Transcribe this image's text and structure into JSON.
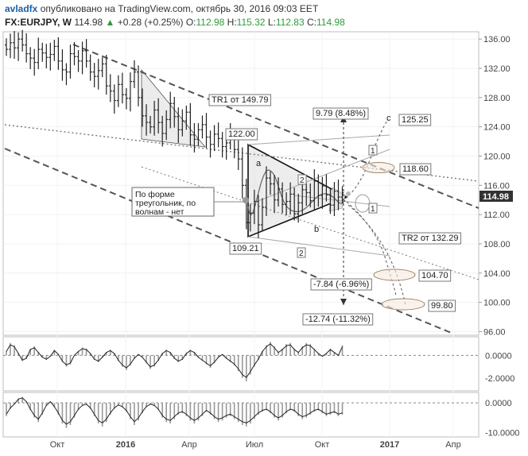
{
  "header": {
    "author": "avladfx",
    "published": "опубликовано на TradingView.com, октябрь 30, 2016 09:03 EET",
    "symbol": "FX:EURJPY, W",
    "last": "114.98",
    "change_arrow": "▲",
    "change": "+0.28 (+0.25%)",
    "open_label": "O:",
    "open": "112.98",
    "high_label": "H:",
    "high": "115.32",
    "low_label": "L:",
    "low": "112.83",
    "close_label": "C:",
    "close": "114.98"
  },
  "colors": {
    "price_tag_bg": "#333333",
    "candles": "#222222",
    "trend_dashed": "#555555",
    "channel_dotted": "#777777"
  },
  "chart_data": [
    {
      "type": "candlestick",
      "panel": "price",
      "y_axis_ticks": [
        136.0,
        132.0,
        128.0,
        124.0,
        120.0,
        116.0,
        112.0,
        108.0,
        104.0,
        100.0,
        96.0
      ],
      "ylim": [
        95.5,
        137.0
      ],
      "last_price_tag": "114.98",
      "x_axis_labels": [
        "Окт",
        "2016",
        "Апр",
        "Июл",
        "Окт",
        "2017",
        "Апр"
      ],
      "series_approx_close": [
        134.6,
        135.5,
        134.8,
        136.0,
        135.2,
        134.0,
        133.4,
        132.8,
        134.6,
        134.1,
        133.5,
        133.9,
        135.0,
        133.0,
        131.8,
        131.5,
        134.0,
        133.6,
        133.0,
        134.4,
        133.0,
        131.5,
        130.9,
        131.7,
        132.6,
        129.6,
        128.9,
        127.6,
        129.8,
        128.4,
        127.9,
        130.2,
        131.5,
        128.0,
        125.5,
        124.6,
        124.0,
        126.3,
        124.6,
        123.1,
        125.0,
        127.2,
        125.4,
        123.6,
        124.8,
        126.0,
        122.9,
        122.3,
        123.6,
        124.3,
        122.6,
        121.6,
        123.0,
        122.4,
        121.3,
        121.8,
        122.9,
        120.9,
        119.6,
        116.0,
        110.9,
        112.2,
        113.8,
        110.6,
        113.0,
        117.0,
        116.2,
        114.0,
        115.5,
        113.4,
        113.8,
        114.8,
        112.1,
        113.6,
        115.4,
        115.0,
        113.9,
        116.6,
        114.6,
        115.9,
        114.7,
        113.3,
        115.2,
        114.4,
        114.98
      ],
      "annotations": [
        {
          "kind": "label",
          "text": "TR1 от 149.79"
        },
        {
          "kind": "label",
          "text": "TR2 от 132.29"
        },
        {
          "kind": "label",
          "text": "122.00"
        },
        {
          "kind": "label",
          "text": "109.21"
        },
        {
          "kind": "label",
          "text": "9.79 (8.48%)"
        },
        {
          "kind": "label",
          "text": "-7.84 (-6.96%)"
        },
        {
          "kind": "label",
          "text": "-12.74 (-11.32%)"
        },
        {
          "kind": "label",
          "text": "125.25"
        },
        {
          "kind": "label",
          "text": "118.60"
        },
        {
          "kind": "label",
          "text": "104.70"
        },
        {
          "kind": "label",
          "text": "99.80"
        },
        {
          "kind": "note",
          "text": "По форме треугольник, по волнам - нет"
        },
        {
          "kind": "wave",
          "text": "a"
        },
        {
          "kind": "wave",
          "text": "b"
        },
        {
          "kind": "wave",
          "text": "c"
        },
        {
          "kind": "marker",
          "text": "1"
        },
        {
          "kind": "marker",
          "text": "2"
        }
      ]
    },
    {
      "type": "histogram+line",
      "panel": "oscillator-1",
      "y_axis_ticks": [
        "0.0000",
        "-2.0000"
      ],
      "ylim": [
        -3.0,
        1.5
      ],
      "values_approx": [
        0.4,
        1.1,
        0.9,
        0.2,
        -0.5,
        -0.3,
        0.6,
        0.8,
        0.3,
        -0.2,
        -0.4,
        -0.1,
        0.5,
        0.1,
        -0.6,
        -1.0,
        -0.8,
        0.0,
        0.4,
        0.7,
        0.6,
        0.2,
        -0.4,
        -0.6,
        -0.2,
        0.3,
        0.5,
        0.2,
        -0.5,
        -1.0,
        -1.3,
        -0.9,
        -0.3,
        0.1,
        -0.2,
        -0.7,
        -1.2,
        -1.0,
        -0.5,
        0.2,
        0.5,
        0.3,
        -0.3,
        -0.6,
        -0.4,
        0.2,
        0.5,
        0.3,
        -0.2,
        -0.5,
        -0.8,
        -1.1,
        -0.7,
        -0.2,
        0.1,
        -0.3,
        -0.6,
        -0.9,
        -1.4,
        -2.0,
        -2.3,
        -1.7,
        -1.0,
        -0.4,
        0.4,
        0.9,
        1.2,
        0.8,
        0.3,
        0.6,
        1.0,
        1.1,
        0.6,
        0.3,
        0.8,
        1.1,
        1.0,
        0.6,
        0.2,
        -0.1,
        0.2,
        0.6,
        0.3,
        0.0,
        0.9
      ]
    },
    {
      "type": "histogram+line",
      "panel": "oscillator-2",
      "y_axis_ticks": [
        "0.0000",
        "-10.0000"
      ],
      "ylim": [
        -11.0,
        3.0
      ],
      "values_approx": [
        -4.5,
        -2.0,
        -0.5,
        1.5,
        2.0,
        0.5,
        -2.5,
        -5.0,
        -6.5,
        -4.0,
        -1.0,
        0.5,
        -1.5,
        -4.0,
        -7.0,
        -8.5,
        -7.5,
        -5.0,
        -2.5,
        -1.0,
        -0.5,
        -2.0,
        -4.5,
        -7.0,
        -8.0,
        -6.5,
        -4.0,
        -2.0,
        -0.8,
        -1.5,
        -3.0,
        -5.5,
        -7.5,
        -6.0,
        -3.5,
        -1.5,
        -0.5,
        -1.0,
        -2.5,
        -5.0,
        -6.5,
        -7.0,
        -5.5,
        -4.0,
        -3.5,
        -4.5,
        -6.0,
        -7.0,
        -6.0,
        -4.5,
        -3.0,
        -4.0,
        -5.5,
        -6.5,
        -6.0,
        -5.0,
        -4.5,
        -5.5,
        -6.5,
        -7.5,
        -8.0,
        -7.0,
        -5.5,
        -4.0,
        -3.0,
        -2.5,
        -3.5,
        -5.0,
        -6.0,
        -5.0,
        -3.5,
        -2.5,
        -3.0,
        -4.5,
        -5.5,
        -5.0,
        -4.0,
        -3.0,
        -2.5,
        -3.5,
        -4.5,
        -4.0,
        -3.5,
        -4.5,
        -4.0
      ]
    }
  ]
}
